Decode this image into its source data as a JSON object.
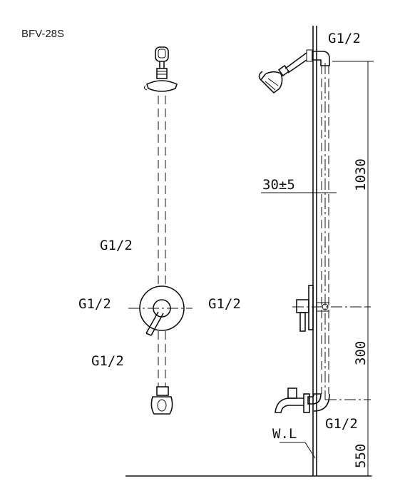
{
  "title": "BFV-28S",
  "front_view": {
    "label_top": "G1/2",
    "label_left": "G1/2",
    "label_right": "G1/2",
    "label_bottom": "G1/2"
  },
  "side_view": {
    "label_top_inlet": "G1/2",
    "label_bottom_inlet": "G1/2",
    "label_offset": "30±5",
    "label_water_level": "W.L",
    "dim_upper": "1030",
    "dim_middle": "300",
    "dim_lower": "550"
  }
}
